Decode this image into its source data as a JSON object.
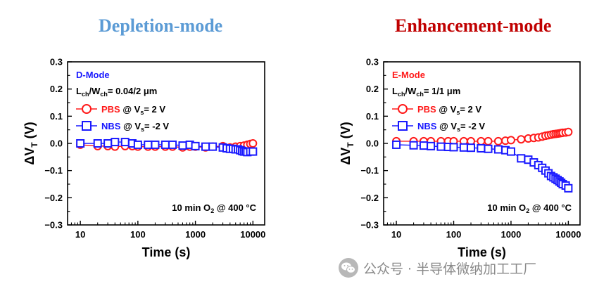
{
  "colors": {
    "left_title": "#5b9bd5",
    "right_title": "#c00000",
    "pbs": "#ff1a1a",
    "nbs": "#1a1aff",
    "dmode_label": "#1a1aff",
    "emode_label": "#ff1a1a"
  },
  "watermark": {
    "text": "公众号 · 半导体微纳加工工厂",
    "icon": "wechat-icon"
  },
  "chart_data": [
    {
      "type": "scatter",
      "title": "Depletion-mode",
      "xlabel": "Time (s)",
      "ylabel": "ΔVT (V)",
      "x_scale": "log",
      "xlim": [
        6,
        16000
      ],
      "ylim": [
        -0.3,
        0.3
      ],
      "x_ticks": [
        10,
        100,
        1000,
        10000
      ],
      "x_tick_labels": [
        "10",
        "100",
        "1000",
        "10000"
      ],
      "y_ticks": [
        -0.3,
        -0.2,
        -0.1,
        0.0,
        0.1,
        0.2,
        0.3
      ],
      "y_tick_labels": [
        "−0.3",
        "−0.2",
        "−0.1",
        "0.0",
        "0.1",
        "0.2",
        "0.3"
      ],
      "legend": {
        "heading": "D-Mode",
        "dim_prefix": "L",
        "dim_sub1": "ch",
        "dim_mid": "/W",
        "dim_sub2": "ch",
        "dim_value": "= 0.04/2 μm",
        "entries": [
          {
            "series": "PBS",
            "name": "PBS",
            "at": "@ V",
            "sub": "s",
            "value": "= 2 V"
          },
          {
            "series": "NBS",
            "name": "NBS",
            "at": "@ V",
            "sub": "s",
            "value": "= -2 V"
          }
        ]
      },
      "annotation": {
        "main": "10 min O",
        "sub": "2",
        "tail": " @ 400 °C"
      },
      "series": [
        {
          "name": "PBS",
          "marker": "circle",
          "color": "#ff1a1a",
          "x": [
            10,
            20,
            30,
            40,
            60,
            80,
            100,
            150,
            200,
            300,
            400,
            600,
            800,
            1000,
            1500,
            2000,
            3000,
            4000,
            5000,
            6000,
            7000,
            8000,
            9000,
            10000
          ],
          "y": [
            -0.005,
            -0.01,
            -0.01,
            -0.012,
            -0.01,
            -0.01,
            -0.012,
            -0.012,
            -0.012,
            -0.012,
            -0.012,
            -0.015,
            -0.012,
            -0.012,
            -0.015,
            -0.012,
            -0.01,
            -0.015,
            -0.012,
            -0.01,
            -0.008,
            -0.005,
            -0.002,
            0.0
          ]
        },
        {
          "name": "NBS",
          "marker": "square",
          "color": "#1a1aff",
          "x": [
            10,
            20,
            30,
            40,
            60,
            80,
            100,
            150,
            200,
            300,
            400,
            600,
            800,
            1000,
            1500,
            2000,
            3000,
            3500,
            4000,
            4500,
            5000,
            5500,
            6000,
            6500,
            7000,
            7500,
            8000,
            9000,
            10000
          ],
          "y": [
            0.0,
            0.0,
            0.0,
            0.005,
            0.005,
            0.0,
            -0.005,
            -0.005,
            -0.005,
            -0.005,
            -0.005,
            -0.008,
            -0.005,
            -0.01,
            -0.012,
            -0.012,
            -0.015,
            -0.018,
            -0.02,
            -0.02,
            -0.022,
            -0.022,
            -0.025,
            -0.028,
            -0.03,
            -0.03,
            -0.032,
            -0.03,
            -0.03
          ]
        }
      ]
    },
    {
      "type": "scatter",
      "title": "Enhancement-mode",
      "xlabel": "Time (s)",
      "ylabel": "ΔVT (V)",
      "x_scale": "log",
      "xlim": [
        6,
        16000
      ],
      "ylim": [
        -0.3,
        0.3
      ],
      "x_ticks": [
        10,
        100,
        1000,
        10000
      ],
      "x_tick_labels": [
        "10",
        "100",
        "1000",
        "10000"
      ],
      "y_ticks": [
        -0.3,
        -0.2,
        -0.1,
        0.0,
        0.1,
        0.2,
        0.3
      ],
      "y_tick_labels": [
        "−0.3",
        "−0.2",
        "−0.1",
        "0.0",
        "0.1",
        "0.2",
        "0.3"
      ],
      "legend": {
        "heading": "E-Mode",
        "dim_prefix": "L",
        "dim_sub1": "ch",
        "dim_mid": "/W",
        "dim_sub2": "ch",
        "dim_value": "= 1/1 μm",
        "entries": [
          {
            "series": "PBS",
            "name": "PBS",
            "at": "@ V",
            "sub": "s",
            "value": "= 2 V"
          },
          {
            "series": "NBS",
            "name": "NBS",
            "at": "@ V",
            "sub": "s",
            "value": "= -2 V"
          }
        ]
      },
      "annotation": {
        "main": "10 min O",
        "sub": "2",
        "tail": " @ 400 °C"
      },
      "series": [
        {
          "name": "PBS",
          "marker": "circle",
          "color": "#ff1a1a",
          "x": [
            10,
            20,
            30,
            40,
            60,
            80,
            100,
            150,
            200,
            300,
            400,
            600,
            800,
            1000,
            1500,
            2000,
            2500,
            3000,
            3500,
            4000,
            4500,
            5000,
            5500,
            6000,
            6500,
            7000,
            7500,
            8000,
            9000,
            10000
          ],
          "y": [
            0.008,
            0.008,
            0.008,
            0.008,
            0.008,
            0.008,
            0.008,
            0.008,
            0.008,
            0.008,
            0.008,
            0.008,
            0.01,
            0.012,
            0.015,
            0.018,
            0.02,
            0.022,
            0.025,
            0.028,
            0.03,
            0.032,
            0.034,
            0.035,
            0.036,
            0.037,
            0.038,
            0.039,
            0.04,
            0.042
          ]
        },
        {
          "name": "NBS",
          "marker": "square",
          "color": "#1a1aff",
          "x": [
            10,
            20,
            30,
            40,
            60,
            80,
            100,
            150,
            200,
            300,
            400,
            600,
            800,
            1000,
            1500,
            2000,
            2500,
            3000,
            3500,
            4000,
            4500,
            5000,
            5500,
            6000,
            6500,
            7000,
            7500,
            8000,
            9000,
            10000
          ],
          "y": [
            -0.005,
            -0.007,
            -0.008,
            -0.01,
            -0.012,
            -0.013,
            -0.014,
            -0.015,
            -0.016,
            -0.018,
            -0.02,
            -0.022,
            -0.025,
            -0.03,
            -0.055,
            -0.06,
            -0.07,
            -0.08,
            -0.09,
            -0.1,
            -0.11,
            -0.12,
            -0.125,
            -0.13,
            -0.135,
            -0.14,
            -0.145,
            -0.15,
            -0.155,
            -0.165
          ]
        }
      ]
    }
  ]
}
